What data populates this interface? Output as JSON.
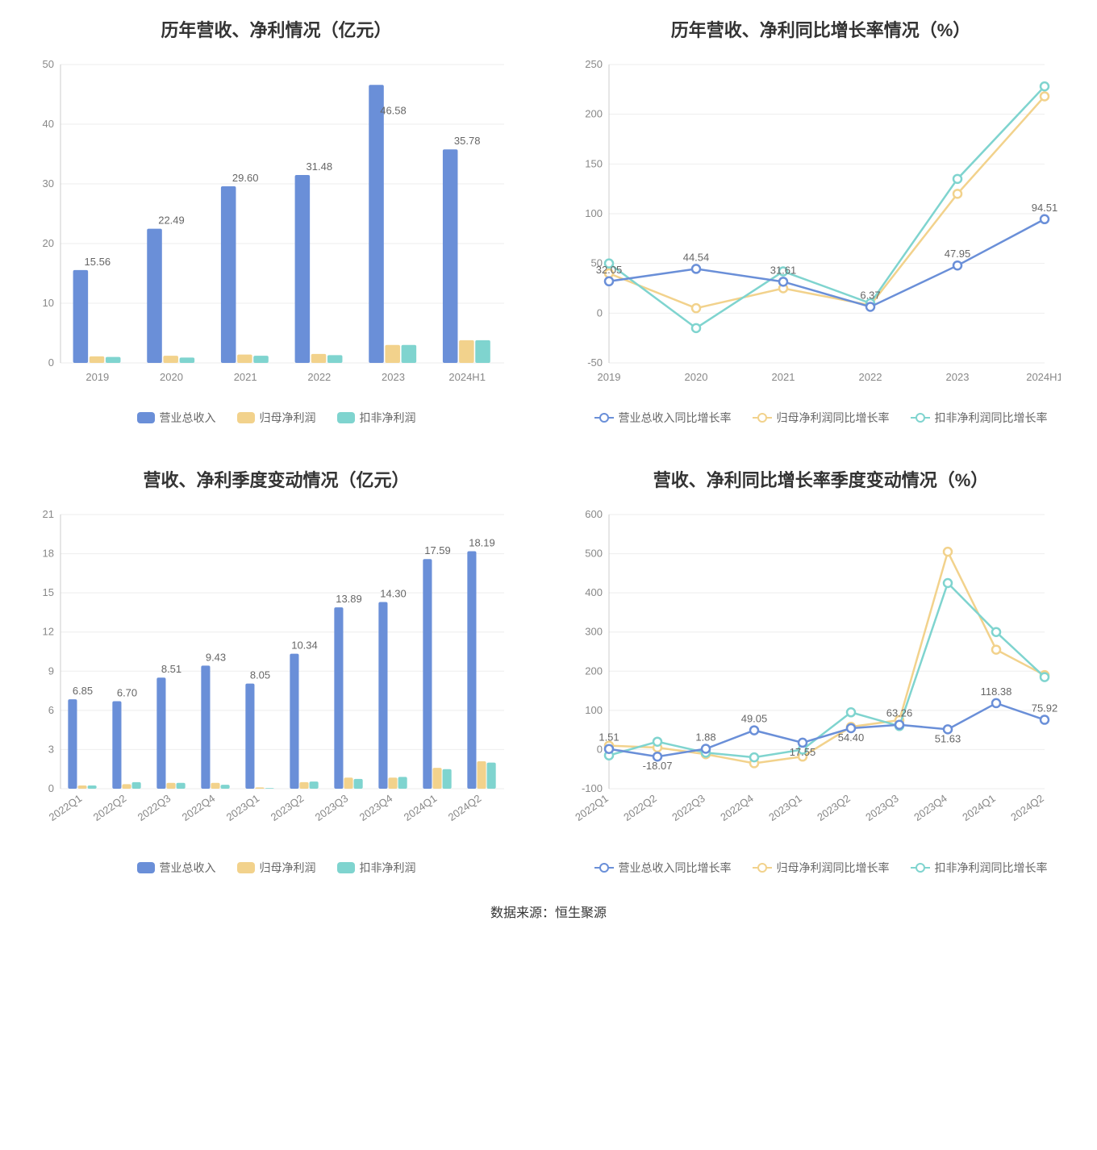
{
  "footer": "数据来源：恒生聚源",
  "colors": {
    "blue": "#6a8fd8",
    "yellow": "#f2d28c",
    "teal": "#7fd4cf",
    "grid": "#eeeeee",
    "axis": "#cccccc",
    "text": "#888888",
    "title": "#333333"
  },
  "charts": {
    "tl": {
      "title": "历年营收、净利情况（亿元）",
      "type": "bar",
      "categories": [
        "2019",
        "2020",
        "2021",
        "2022",
        "2023",
        "2024H1"
      ],
      "ylim": [
        0,
        50
      ],
      "ytick_step": 10,
      "series": [
        {
          "name": "营业总收入",
          "color": "#6a8fd8",
          "values": [
            15.56,
            22.49,
            29.6,
            31.48,
            46.58,
            35.78
          ]
        },
        {
          "name": "归母净利润",
          "color": "#f2d28c",
          "values": [
            1.1,
            1.2,
            1.4,
            1.5,
            3.0,
            3.8
          ]
        },
        {
          "name": "扣非净利润",
          "color": "#7fd4cf",
          "values": [
            1.0,
            0.9,
            1.2,
            1.3,
            3.0,
            3.8
          ]
        }
      ],
      "bar_labels_series": 0,
      "bar_labels": [
        "15.56",
        "22.49",
        "29.60",
        "31.48",
        "46.58",
        "35.78"
      ],
      "label_offsets_y": [
        0,
        0,
        0,
        0,
        42,
        0
      ],
      "bar_width": 0.22,
      "legend": [
        "营业总收入",
        "归母净利润",
        "扣非净利润"
      ]
    },
    "tr": {
      "title": "历年营收、净利同比增长率情况（%）",
      "type": "line",
      "categories": [
        "2019",
        "2020",
        "2021",
        "2022",
        "2023",
        "2024H1"
      ],
      "ylim": [
        -50,
        250
      ],
      "ytick_step": 50,
      "series": [
        {
          "name": "营业总收入同比增长率",
          "color": "#6a8fd8",
          "values": [
            32.05,
            44.54,
            31.61,
            6.37,
            47.95,
            94.51
          ]
        },
        {
          "name": "归母净利润同比增长率",
          "color": "#f2d28c",
          "values": [
            40,
            5,
            25,
            8,
            120,
            218
          ]
        },
        {
          "name": "扣非净利润同比增长率",
          "color": "#7fd4cf",
          "values": [
            50,
            -15,
            42,
            10,
            135,
            228
          ]
        }
      ],
      "point_labels_series": 0,
      "point_labels": [
        "32.05",
        "44.54",
        "31.61",
        "6.37",
        "47.95",
        "94.51"
      ],
      "legend": [
        "营业总收入同比增长率",
        "归母净利润同比增长率",
        "扣非净利润同比增长率"
      ]
    },
    "bl": {
      "title": "营收、净利季度变动情况（亿元）",
      "type": "bar",
      "categories": [
        "2022Q1",
        "2022Q2",
        "2022Q3",
        "2022Q4",
        "2023Q1",
        "2023Q2",
        "2023Q3",
        "2023Q4",
        "2024Q1",
        "2024Q2"
      ],
      "rotate_x": true,
      "ylim": [
        0,
        21
      ],
      "ytick_step": 3,
      "series": [
        {
          "name": "营业总收入",
          "color": "#6a8fd8",
          "values": [
            6.85,
            6.7,
            8.51,
            9.43,
            8.05,
            10.34,
            13.89,
            14.3,
            17.59,
            18.19
          ]
        },
        {
          "name": "归母净利润",
          "color": "#f2d28c",
          "values": [
            0.25,
            0.35,
            0.45,
            0.45,
            0.1,
            0.5,
            0.85,
            0.85,
            1.6,
            2.1
          ]
        },
        {
          "name": "扣非净利润",
          "color": "#7fd4cf",
          "values": [
            0.25,
            0.5,
            0.45,
            0.3,
            0.05,
            0.55,
            0.75,
            0.9,
            1.5,
            2.0
          ]
        }
      ],
      "bar_labels_series": 0,
      "bar_labels": [
        "6.85",
        "6.70",
        "8.51",
        "9.43",
        "8.05",
        "10.34",
        "13.89",
        "14.30",
        "17.59",
        "18.19"
      ],
      "label_offsets_y": [
        0,
        0,
        0,
        0,
        0,
        0,
        0,
        0,
        0,
        0
      ],
      "bar_width": 0.22,
      "legend": [
        "营业总收入",
        "归母净利润",
        "扣非净利润"
      ]
    },
    "br": {
      "title": "营收、净利同比增长率季度变动情况（%）",
      "type": "line",
      "categories": [
        "2022Q1",
        "2022Q2",
        "2022Q3",
        "2022Q4",
        "2023Q1",
        "2023Q2",
        "2023Q3",
        "2023Q4",
        "2024Q1",
        "2024Q2"
      ],
      "rotate_x": true,
      "ylim": [
        -100,
        600
      ],
      "ytick_step": 100,
      "series": [
        {
          "name": "营业总收入同比增长率",
          "color": "#6a8fd8",
          "values": [
            1.51,
            -18.07,
            1.88,
            49.05,
            17.55,
            54.4,
            63.26,
            51.63,
            118.38,
            75.92
          ]
        },
        {
          "name": "归母净利润同比增长率",
          "color": "#f2d28c",
          "values": [
            10,
            5,
            -12,
            -35,
            -18,
            58,
            75,
            505,
            255,
            190
          ]
        },
        {
          "name": "扣非净利润同比增长率",
          "color": "#7fd4cf",
          "values": [
            -15,
            20,
            -8,
            -20,
            0,
            95,
            60,
            425,
            300,
            185
          ]
        }
      ],
      "point_labels_series": 0,
      "point_labels": [
        "1.51",
        "-18.07",
        "1.88",
        "49.05",
        "17.55",
        "54.40",
        "63.26",
        "51.63",
        "118.38",
        "75.92"
      ],
      "point_label_dy": [
        -10,
        16,
        -10,
        -10,
        16,
        16,
        -10,
        16,
        -10,
        -10
      ],
      "legend": [
        "营业总收入同比增长率",
        "归母净利润同比增长率",
        "扣非净利润同比增长率"
      ]
    }
  }
}
